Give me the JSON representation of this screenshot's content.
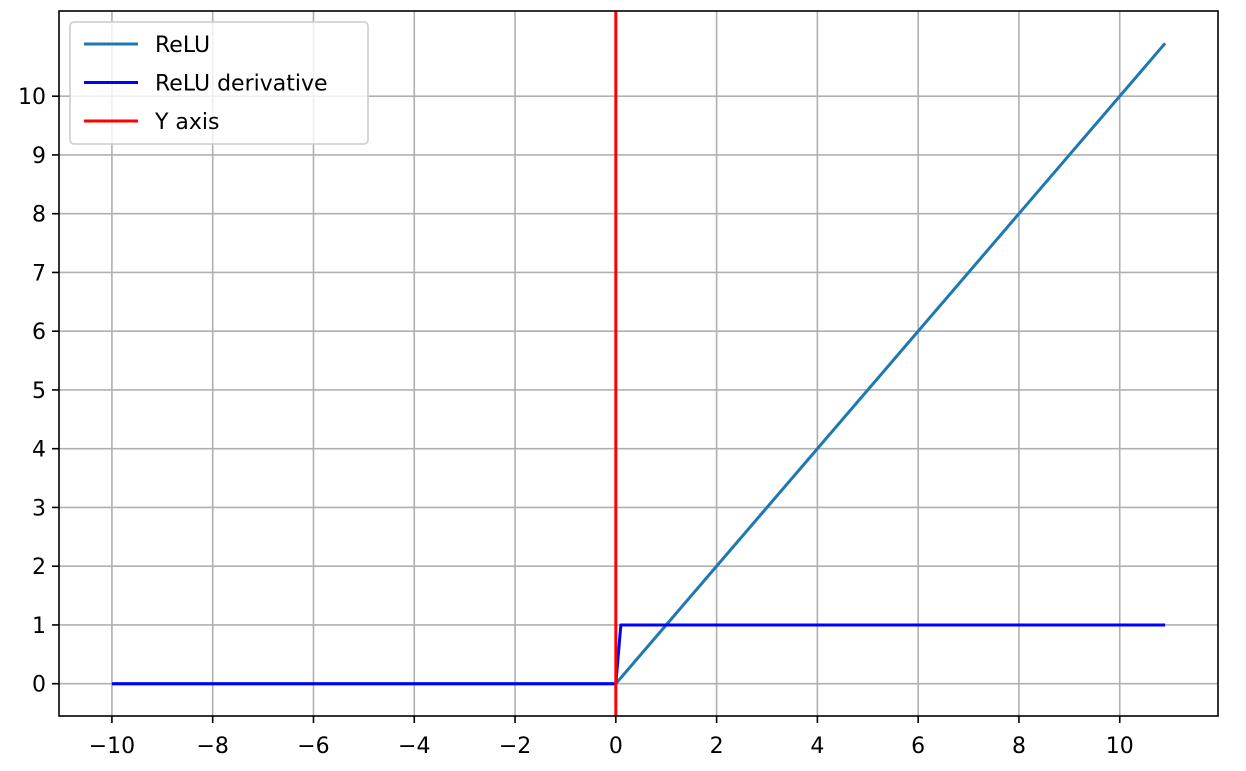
{
  "chart_data": {
    "type": "line",
    "title": "",
    "xlabel": "",
    "ylabel": "",
    "xlim": [
      -11.05,
      11.95
    ],
    "ylim": [
      -0.55,
      11.45
    ],
    "grid": true,
    "legend_position": "top-left",
    "xticks": [
      -10,
      -8,
      -6,
      -4,
      -2,
      0,
      2,
      4,
      6,
      8,
      10
    ],
    "xtick_labels": [
      "−10",
      "−8",
      "−6",
      "−4",
      "−2",
      "0",
      "2",
      "4",
      "6",
      "8",
      "10"
    ],
    "yticks": [
      0,
      1,
      2,
      3,
      4,
      5,
      6,
      7,
      8,
      9,
      10
    ],
    "ytick_labels": [
      "0",
      "1",
      "2",
      "3",
      "4",
      "5",
      "6",
      "7",
      "8",
      "9",
      "10"
    ],
    "series": [
      {
        "name": "ReLU",
        "color": "#1f77b4",
        "x": [
          -10,
          0,
          10.9
        ],
        "y": [
          0,
          0,
          10.9
        ]
      },
      {
        "name": "ReLU derivative",
        "color": "#0000ff",
        "x": [
          -10,
          0,
          0.1,
          10.9
        ],
        "y": [
          0,
          0,
          1,
          1
        ]
      },
      {
        "name": "Y axis",
        "color": "#ff0000",
        "x": [
          0,
          0
        ],
        "y": [
          -0.55,
          11.45
        ]
      }
    ]
  }
}
